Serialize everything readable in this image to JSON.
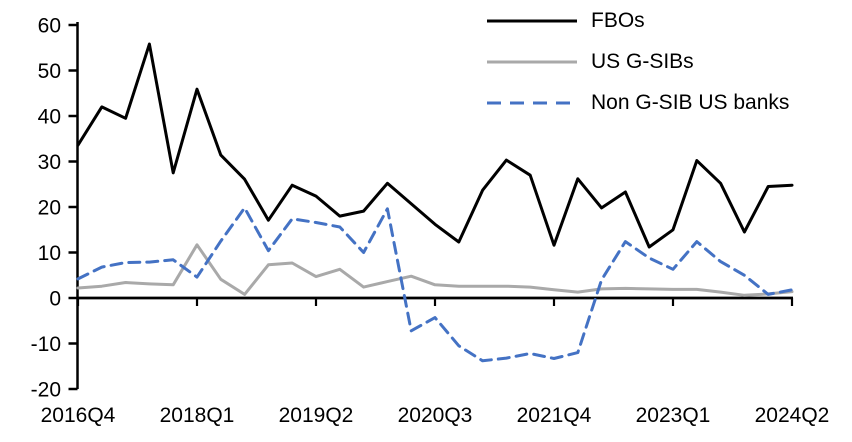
{
  "chart_data": {
    "type": "line",
    "title": "",
    "xlabel": "",
    "ylabel": "",
    "grid": false,
    "legend_position": "top-right",
    "ylim": [
      -20,
      60
    ],
    "ytick_step": 10,
    "ytick_labels": [
      "-20",
      "-10",
      "0",
      "10",
      "20",
      "30",
      "40",
      "50",
      "60"
    ],
    "x_tick_labels": [
      "2016Q4",
      "2018Q1",
      "2019Q2",
      "2020Q3",
      "2021Q4",
      "2023Q1",
      "2024Q2"
    ],
    "x_tick_indices": [
      0,
      5,
      10,
      15,
      20,
      25,
      30
    ],
    "categories": [
      "2016Q4",
      "2017Q1",
      "2017Q2",
      "2017Q3",
      "2017Q4",
      "2018Q1",
      "2018Q2",
      "2018Q3",
      "2018Q4",
      "2019Q1",
      "2019Q2",
      "2019Q3",
      "2019Q4",
      "2020Q1",
      "2020Q2",
      "2020Q3",
      "2020Q4",
      "2021Q1",
      "2021Q2",
      "2021Q3",
      "2021Q4",
      "2022Q1",
      "2022Q2",
      "2022Q3",
      "2022Q4",
      "2023Q1",
      "2023Q2",
      "2023Q3",
      "2023Q4",
      "2024Q1",
      "2024Q2"
    ],
    "series": [
      {
        "name": "FBOs",
        "color": "#000000",
        "line_style": "solid",
        "values": [
          33.6,
          42,
          39.5,
          55.8,
          27.5,
          45.9,
          31.4,
          26.1,
          17.1,
          24.8,
          22.4,
          18,
          19.1,
          25.2,
          20.7,
          16.2,
          12.3,
          23.7,
          30.3,
          27,
          11.6,
          26.2,
          19.8,
          23.3,
          11.2,
          15,
          30.2,
          25.2,
          14.5,
          24.5,
          24.8
        ]
      },
      {
        "name": "US G-SIBs",
        "color": "#a9a9a9",
        "line_style": "solid",
        "values": [
          2.2,
          2.6,
          3.4,
          3.1,
          2.9,
          11.7,
          4.1,
          0.8,
          7.3,
          7.7,
          4.7,
          6.3,
          2.4,
          3.6,
          4.8,
          2.9,
          2.6,
          2.6,
          2.6,
          2.4,
          1.8,
          1.3,
          2,
          2.1,
          2,
          1.9,
          1.9,
          1.3,
          0.6,
          0.9,
          1.4
        ]
      },
      {
        "name": "Non G-SIB US banks",
        "color": "#4472c4",
        "line_style": "dashed",
        "values": [
          4.2,
          6.8,
          7.8,
          7.9,
          8.4,
          4.6,
          12.5,
          19.8,
          10.4,
          17.4,
          16.6,
          15.6,
          10,
          19.6,
          -7.2,
          -4.3,
          -10.5,
          -13.8,
          -13.2,
          -12.2,
          -13.3,
          -12,
          4,
          12.4,
          8.8,
          6.3,
          12.4,
          8,
          5,
          0.8,
          1.8
        ]
      }
    ]
  }
}
